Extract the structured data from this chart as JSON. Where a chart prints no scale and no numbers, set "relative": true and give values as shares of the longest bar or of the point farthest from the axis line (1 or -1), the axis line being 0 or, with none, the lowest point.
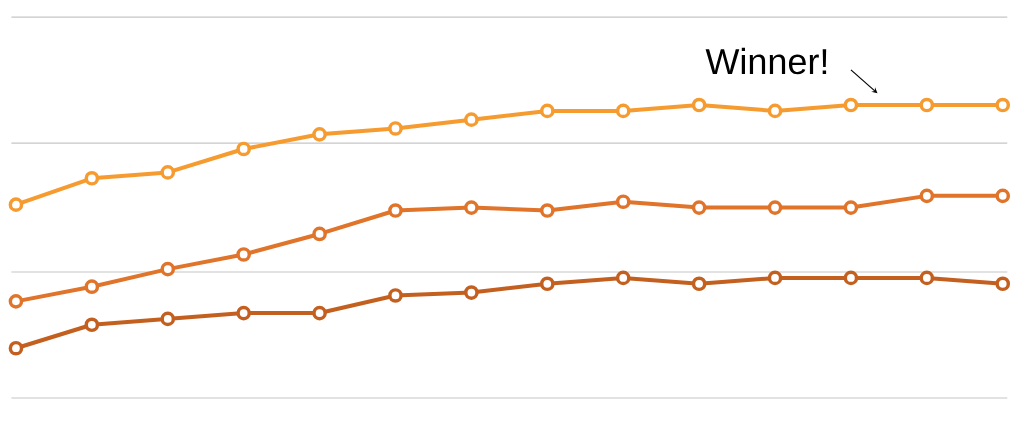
{
  "chart_data": {
    "type": "line",
    "relative": true,
    "categories": [
      null,
      null,
      null,
      null,
      null,
      null,
      null,
      null,
      null,
      null,
      null,
      null,
      null,
      null
    ],
    "series": [
      {
        "color": "#f59b2f",
        "values": [
          0.66,
          0.75,
          0.77,
          0.85,
          0.9,
          0.92,
          0.95,
          0.98,
          0.98,
          1.0,
          0.98,
          1.0,
          1.0,
          1.0
        ]
      },
      {
        "color": "#e0742a",
        "values": [
          0.33,
          0.38,
          0.44,
          0.49,
          0.56,
          0.64,
          0.65,
          0.64,
          0.67,
          0.65,
          0.65,
          0.65,
          0.69,
          0.69
        ]
      },
      {
        "color": "#c4601f",
        "values": [
          0.17,
          0.25,
          0.27,
          0.29,
          0.29,
          0.35,
          0.36,
          0.39,
          0.41,
          0.39,
          0.41,
          0.41,
          0.41,
          0.39
        ]
      }
    ],
    "annotations": [
      "Winner!"
    ],
    "ref_lines": [
      {
        "axis": "y",
        "value": 0,
        "color": "#c6c6c6"
      },
      {
        "axis": "y",
        "value": 0.43,
        "color": "#c6c6c6"
      },
      {
        "axis": "y",
        "value": 0.87,
        "color": "#c6c6c6"
      },
      {
        "axis": "y",
        "value": 1.3,
        "color": "#c6c6c6"
      }
    ],
    "marker": "circle",
    "line_style": "solid"
  }
}
